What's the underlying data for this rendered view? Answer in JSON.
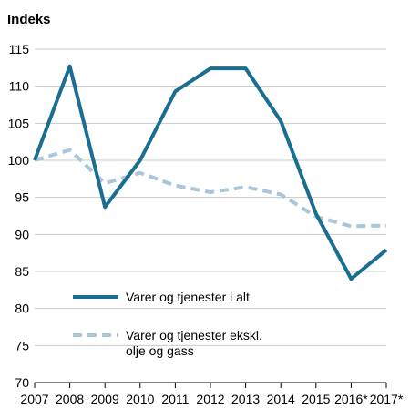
{
  "chart_data": {
    "type": "line",
    "ylabel": "Indeks",
    "categories": [
      "2007",
      "2008",
      "2009",
      "2010",
      "2011",
      "2012",
      "2013",
      "2014",
      "2015",
      "2016*",
      "2017*"
    ],
    "ylim": [
      70,
      115
    ],
    "yticks": [
      70,
      75,
      80,
      85,
      90,
      95,
      100,
      105,
      110,
      115
    ],
    "grid": true,
    "legend_position": "bottom-left",
    "series": [
      {
        "name": "Varer og tjenester i alt",
        "values": [
          100,
          112.7,
          93.7,
          100,
          109.3,
          112.4,
          112.4,
          105.3,
          92.8,
          84.0,
          87.9
        ],
        "color": "#1a6e91",
        "style": "solid"
      },
      {
        "name": "Varer og tjenester ekskl. olje og gass",
        "name_lines": [
          "Varer og tjenester ekskl.",
          "olje og gass"
        ],
        "values": [
          100,
          101.4,
          96.9,
          98.3,
          96.6,
          95.7,
          96.4,
          95.4,
          92.4,
          91.1,
          91.2
        ],
        "color": "#a9c7d8",
        "style": "dashed"
      }
    ]
  }
}
